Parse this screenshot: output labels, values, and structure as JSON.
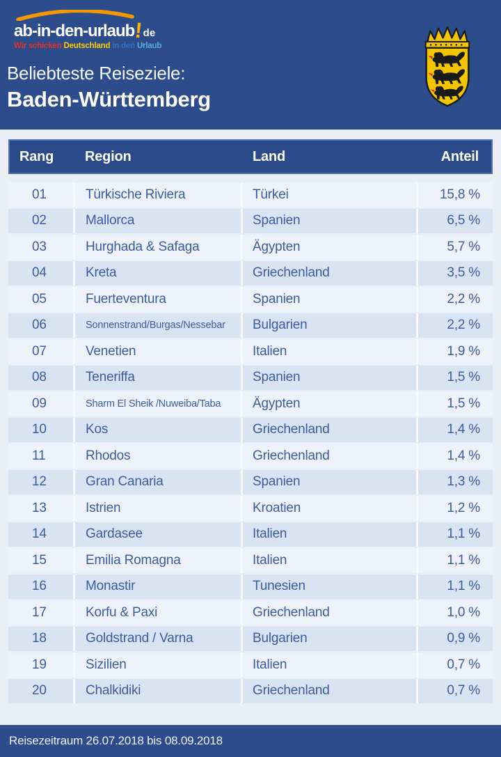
{
  "colors": {
    "band_blue": "#2d4c8c",
    "table_header_blue": "#2b4a89",
    "table_header_border": "#5571aa",
    "content_background": "#e9eef7",
    "row_light": "#eef3fb",
    "row_dark": "#d9e4f3",
    "row_text_blue": "#3c5ba0",
    "logo_arc_orange": "#f49800",
    "logo_bang_yellow": "#ffb400",
    "emblem_gold": "#f2c500",
    "emblem_black": "#1a1a1a",
    "emblem_tongue_red": "#d42b1e"
  },
  "header": {
    "logo": {
      "brand": "ab-in-den-urlaub",
      "bang": "!",
      "tld": "de",
      "tagline": {
        "part1": "Wir schicken",
        "part2": "Deutschland",
        "part3": "in den",
        "part4": "Urlaub"
      }
    },
    "subtitle": "Beliebteste Reiseziele:",
    "title": "Baden-Württemberg",
    "emblem": "baden-wuerttemberg-coat-of-arms"
  },
  "chart_data": {
    "type": "table",
    "title": "Beliebteste Reiseziele: Baden-Württemberg",
    "columns": [
      "Rang",
      "Region",
      "Land",
      "Anteil"
    ],
    "rows": [
      {
        "rang": "01",
        "region": "Türkische Riviera",
        "land": "Türkei",
        "anteil": "15,8 %"
      },
      {
        "rang": "02",
        "region": "Mallorca",
        "land": "Spanien",
        "anteil": "6,5 %"
      },
      {
        "rang": "03",
        "region": "Hurghada & Safaga",
        "land": "Ägypten",
        "anteil": "5,7 %"
      },
      {
        "rang": "04",
        "region": "Kreta",
        "land": "Griechenland",
        "anteil": "3,5 %"
      },
      {
        "rang": "05",
        "region": "Fuerteventura",
        "land": "Spanien",
        "anteil": "2,2 %"
      },
      {
        "rang": "06",
        "region": "Sonnenstrand/Burgas/Nessebar",
        "land": "Bulgarien",
        "anteil": "2,2 %",
        "region_small": true
      },
      {
        "rang": "07",
        "region": "Venetien",
        "land": "Italien",
        "anteil": "1,9 %"
      },
      {
        "rang": "08",
        "region": "Teneriffa",
        "land": "Spanien",
        "anteil": "1,5 %"
      },
      {
        "rang": "09",
        "region": "Sharm El Sheik /Nuweiba/Taba",
        "land": "Ägypten",
        "anteil": "1,5 %",
        "region_small": true
      },
      {
        "rang": "10",
        "region": "Kos",
        "land": "Griechenland",
        "anteil": "1,4 %"
      },
      {
        "rang": "11",
        "region": "Rhodos",
        "land": "Griechenland",
        "anteil": "1,4 %"
      },
      {
        "rang": "12",
        "region": "Gran Canaria",
        "land": "Spanien",
        "anteil": "1,3 %"
      },
      {
        "rang": "13",
        "region": "Istrien",
        "land": "Kroatien",
        "anteil": "1,2 %"
      },
      {
        "rang": "14",
        "region": "Gardasee",
        "land": "Italien",
        "anteil": "1,1 %"
      },
      {
        "rang": "15",
        "region": "Emilia Romagna",
        "land": "Italien",
        "anteil": "1,1 %"
      },
      {
        "rang": "16",
        "region": "Monastir",
        "land": "Tunesien",
        "anteil": "1,1 %"
      },
      {
        "rang": "17",
        "region": "Korfu & Paxi",
        "land": "Griechenland",
        "anteil": "1,0 %"
      },
      {
        "rang": "18",
        "region": "Goldstrand / Varna",
        "land": "Bulgarien",
        "anteil": "0,9 %"
      },
      {
        "rang": "19",
        "region": "Sizilien",
        "land": "Italien",
        "anteil": "0,7 %"
      },
      {
        "rang": "20",
        "region": "Chalkidiki",
        "land": "Griechenland",
        "anteil": "0,7 %"
      }
    ]
  },
  "footer": {
    "note": "Reisezeitraum 26.07.2018 bis 08.09.2018"
  }
}
